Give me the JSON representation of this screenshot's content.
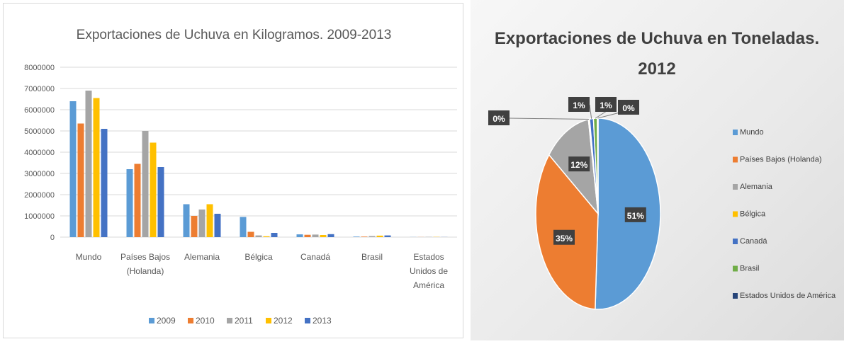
{
  "chart_data": [
    {
      "type": "bar",
      "title": "Exportaciones de Uchuva en Kilogramos. 2009-2013",
      "categories": [
        [
          "Mundo"
        ],
        [
          "Países Bajos",
          "(Holanda)"
        ],
        [
          "Alemania"
        ],
        [
          "Bélgica"
        ],
        [
          "Canadá"
        ],
        [
          "Brasil"
        ],
        [
          "Estados",
          "Unidos de",
          "América"
        ]
      ],
      "yticks": [
        "0",
        "1000000",
        "2000000",
        "3000000",
        "4000000",
        "5000000",
        "6000000",
        "7000000",
        "8000000"
      ],
      "ylim": [
        0,
        8000000
      ],
      "grid": true,
      "legend_position": "bottom",
      "series": [
        {
          "name": "2009",
          "color": "#5b9bd5",
          "values": [
            6400000,
            3200000,
            1550000,
            950000,
            130000,
            25000,
            5000
          ]
        },
        {
          "name": "2010",
          "color": "#ed7d31",
          "values": [
            5350000,
            3450000,
            1000000,
            250000,
            110000,
            25000,
            5000
          ]
        },
        {
          "name": "2011",
          "color": "#a5a5a5",
          "values": [
            6900000,
            5000000,
            1300000,
            80000,
            120000,
            50000,
            10000
          ]
        },
        {
          "name": "2012",
          "color": "#ffc000",
          "values": [
            6550000,
            4450000,
            1550000,
            40000,
            100000,
            70000,
            10000
          ]
        },
        {
          "name": "2013",
          "color": "#4472c4",
          "values": [
            5100000,
            3300000,
            1100000,
            200000,
            140000,
            80000,
            5000
          ]
        }
      ]
    },
    {
      "type": "pie",
      "title": "Exportaciones de Uchuva en Toneladas.",
      "subtitle": "2012",
      "legend_position": "right",
      "slices": [
        {
          "name": "Mundo",
          "value": 51,
          "label": "51%",
          "color": "#5b9bd5"
        },
        {
          "name": "Países Bajos (Holanda)",
          "value": 35,
          "label": "35%",
          "color": "#ed7d31"
        },
        {
          "name": "Alemania",
          "value": 12,
          "label": "12%",
          "color": "#a5a5a5"
        },
        {
          "name": "Bélgica",
          "value": 0.3,
          "label": "0%",
          "color": "#ffc000"
        },
        {
          "name": "Canadá",
          "value": 1,
          "label": "1%",
          "color": "#4472c4"
        },
        {
          "name": "Brasil",
          "value": 1,
          "label": "1%",
          "color": "#70ad47"
        },
        {
          "name": "Estados Unidos de América",
          "value": 0.2,
          "label": "0%",
          "color": "#264478"
        }
      ]
    }
  ]
}
